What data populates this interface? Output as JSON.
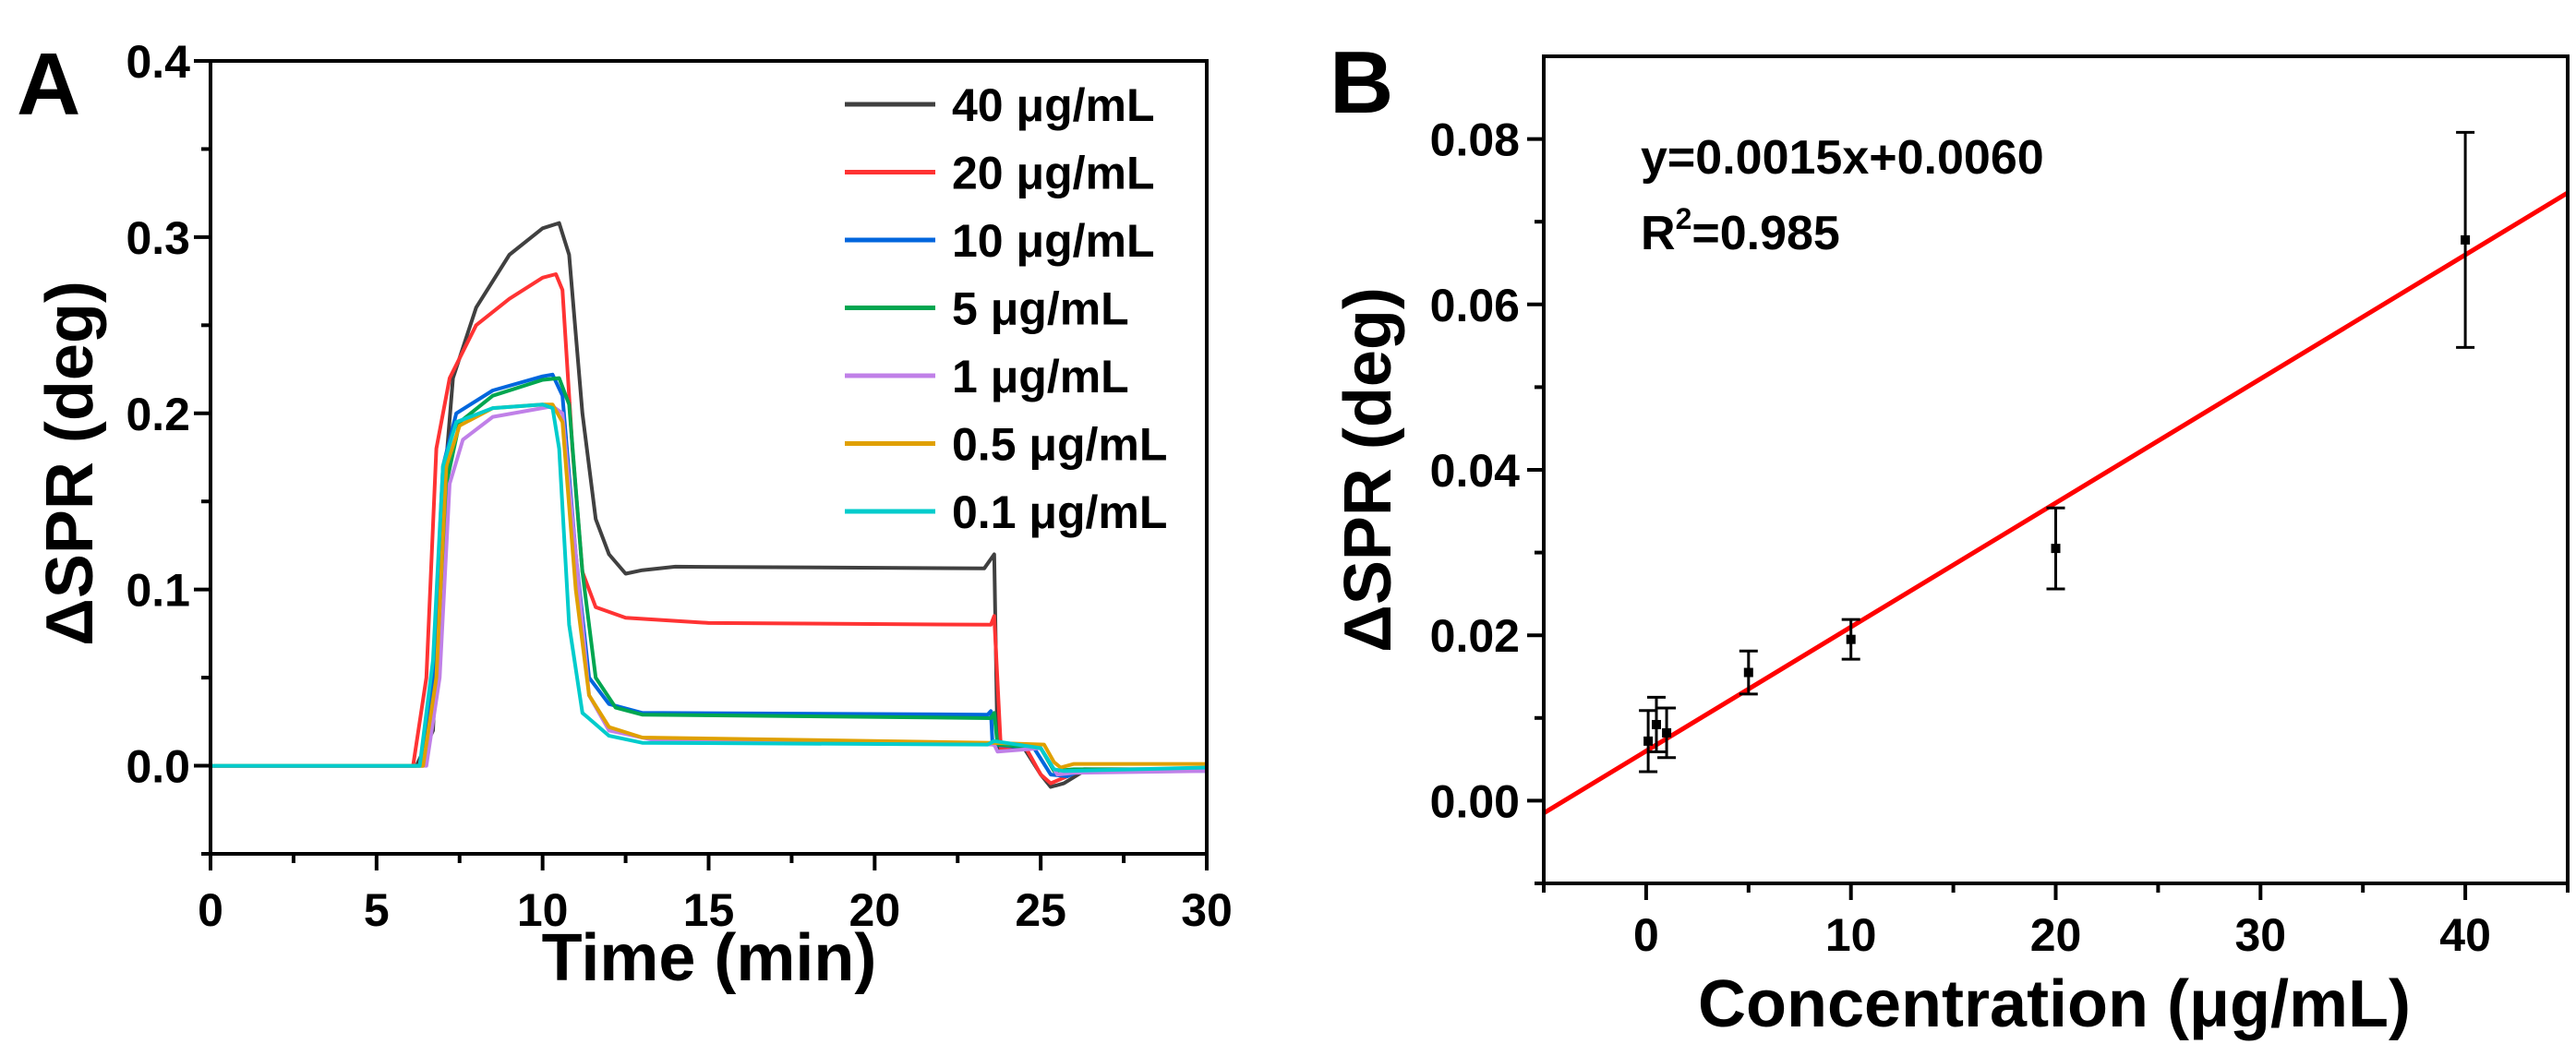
{
  "chart_data": [
    {
      "panel_label": "A",
      "type": "line",
      "xlabel": "Time (min)",
      "ylabel": "ΔSPR (deg)",
      "xlim": [
        0,
        30
      ],
      "ylim": [
        -0.05,
        0.4
      ],
      "xticks": [
        "0",
        "5",
        "10",
        "15",
        "20",
        "25",
        "30"
      ],
      "yticks": [
        "0.0",
        "0.1",
        "0.2",
        "0.3",
        "0.4"
      ],
      "legend_position": "top-right",
      "series": [
        {
          "name": "40 μg/mL",
          "color": "#404040",
          "points": [
            [
              0,
              0
            ],
            [
              6.2,
              0
            ],
            [
              6.7,
              0.02
            ],
            [
              7.0,
              0.15
            ],
            [
              7.3,
              0.22
            ],
            [
              8,
              0.26
            ],
            [
              9,
              0.29
            ],
            [
              10,
              0.305
            ],
            [
              10.5,
              0.308
            ],
            [
              10.8,
              0.29
            ],
            [
              11.2,
              0.2
            ],
            [
              11.6,
              0.14
            ],
            [
              12,
              0.12
            ],
            [
              12.5,
              0.109
            ],
            [
              13,
              0.111
            ],
            [
              14,
              0.113
            ],
            [
              23.3,
              0.112
            ],
            [
              23.6,
              0.12
            ],
            [
              23.7,
              0.01
            ],
            [
              24.5,
              0.01
            ],
            [
              25,
              -0.005
            ],
            [
              25.3,
              -0.012
            ],
            [
              25.7,
              -0.01
            ],
            [
              26.3,
              -0.003
            ],
            [
              30,
              -0.002
            ]
          ]
        },
        {
          "name": "20 μg/mL",
          "color": "#ff3333",
          "points": [
            [
              0,
              0
            ],
            [
              6.1,
              0
            ],
            [
              6.5,
              0.05
            ],
            [
              6.8,
              0.18
            ],
            [
              7.2,
              0.22
            ],
            [
              8,
              0.25
            ],
            [
              9,
              0.265
            ],
            [
              10,
              0.277
            ],
            [
              10.4,
              0.279
            ],
            [
              10.6,
              0.27
            ],
            [
              10.9,
              0.18
            ],
            [
              11.2,
              0.11
            ],
            [
              11.6,
              0.09
            ],
            [
              12.5,
              0.084
            ],
            [
              15,
              0.081
            ],
            [
              23.5,
              0.08
            ],
            [
              23.6,
              0.085
            ],
            [
              23.8,
              0.01
            ],
            [
              24.5,
              0.012
            ],
            [
              25,
              -0.005
            ],
            [
              25.3,
              -0.01
            ],
            [
              25.8,
              -0.006
            ],
            [
              26.3,
              -0.002
            ],
            [
              30,
              -0.002
            ]
          ]
        },
        {
          "name": "10 μg/mL",
          "color": "#0066dd",
          "points": [
            [
              0,
              0
            ],
            [
              6.3,
              0
            ],
            [
              6.7,
              0.05
            ],
            [
              7.0,
              0.17
            ],
            [
              7.4,
              0.2
            ],
            [
              8.5,
              0.213
            ],
            [
              10,
              0.221
            ],
            [
              10.3,
              0.222
            ],
            [
              10.6,
              0.21
            ],
            [
              11,
              0.12
            ],
            [
              11.4,
              0.05
            ],
            [
              12,
              0.035
            ],
            [
              13,
              0.03
            ],
            [
              23.4,
              0.029
            ],
            [
              23.5,
              0.031
            ],
            [
              23.55,
              0.012
            ],
            [
              24.8,
              0.01
            ],
            [
              25.3,
              -0.005
            ],
            [
              25.8,
              -0.006
            ],
            [
              26.3,
              -0.002
            ],
            [
              30,
              -0.003
            ]
          ]
        },
        {
          "name": "5 μg/mL",
          "color": "#00a650",
          "points": [
            [
              0,
              0
            ],
            [
              6.4,
              0
            ],
            [
              6.8,
              0.05
            ],
            [
              7.1,
              0.16
            ],
            [
              7.5,
              0.195
            ],
            [
              8.5,
              0.21
            ],
            [
              10,
              0.219
            ],
            [
              10.5,
              0.22
            ],
            [
              10.8,
              0.205
            ],
            [
              11.2,
              0.11
            ],
            [
              11.6,
              0.05
            ],
            [
              12.2,
              0.033
            ],
            [
              13,
              0.029
            ],
            [
              23.5,
              0.027
            ],
            [
              23.6,
              0.03
            ],
            [
              23.7,
              0.012
            ],
            [
              25,
              0.01
            ],
            [
              25.4,
              -0.003
            ],
            [
              26,
              -0.002
            ],
            [
              30,
              -0.002
            ]
          ]
        },
        {
          "name": "1 μg/mL",
          "color": "#c080e8",
          "points": [
            [
              0,
              0
            ],
            [
              6.5,
              0
            ],
            [
              6.9,
              0.05
            ],
            [
              7.2,
              0.16
            ],
            [
              7.6,
              0.185
            ],
            [
              8.5,
              0.198
            ],
            [
              10.3,
              0.204
            ],
            [
              10.6,
              0.2
            ],
            [
              11,
              0.12
            ],
            [
              11.4,
              0.04
            ],
            [
              12,
              0.02
            ],
            [
              13.5,
              0.014
            ],
            [
              23.6,
              0.012
            ],
            [
              23.7,
              0.008
            ],
            [
              25,
              0.01
            ],
            [
              25.5,
              -0.005
            ],
            [
              26,
              -0.004
            ],
            [
              30,
              -0.003
            ]
          ]
        },
        {
          "name": "0.5 μg/mL",
          "color": "#e0a000",
          "points": [
            [
              0,
              0
            ],
            [
              6.4,
              0
            ],
            [
              6.8,
              0.05
            ],
            [
              7.1,
              0.17
            ],
            [
              7.5,
              0.193
            ],
            [
              8.5,
              0.203
            ],
            [
              10,
              0.205
            ],
            [
              10.3,
              0.205
            ],
            [
              10.6,
              0.195
            ],
            [
              11,
              0.1
            ],
            [
              11.4,
              0.04
            ],
            [
              12,
              0.022
            ],
            [
              13,
              0.016
            ],
            [
              23.5,
              0.013
            ],
            [
              25.1,
              0.012
            ],
            [
              25.4,
              0.002
            ],
            [
              25.6,
              -0.001
            ],
            [
              26,
              0.001
            ],
            [
              30,
              0.001
            ]
          ]
        },
        {
          "name": "0.1 μg/mL",
          "color": "#00cccc",
          "points": [
            [
              0,
              0
            ],
            [
              6.3,
              0
            ],
            [
              6.7,
              0.06
            ],
            [
              7.0,
              0.17
            ],
            [
              7.4,
              0.195
            ],
            [
              8.5,
              0.203
            ],
            [
              10,
              0.205
            ],
            [
              10.3,
              0.203
            ],
            [
              10.5,
              0.18
            ],
            [
              10.8,
              0.08
            ],
            [
              11.2,
              0.03
            ],
            [
              12,
              0.017
            ],
            [
              13,
              0.013
            ],
            [
              23.4,
              0.012
            ],
            [
              23.6,
              0.014
            ],
            [
              25,
              0.01
            ],
            [
              25.4,
              -0.002
            ],
            [
              25.7,
              -0.003
            ],
            [
              30,
              -0.001
            ]
          ]
        }
      ]
    },
    {
      "panel_label": "B",
      "type": "scatter",
      "xlabel": "Concentration (μg/mL)",
      "ylabel": "ΔSPR (deg)",
      "xlim": [
        -5,
        45
      ],
      "ylim": [
        -0.01,
        0.09
      ],
      "xticks": [
        "0",
        "10",
        "20",
        "30",
        "40"
      ],
      "yticks": [
        "0.00",
        "0.02",
        "0.04",
        "0.06",
        "0.08"
      ],
      "points": [
        {
          "x": 0.1,
          "y": 0.0072,
          "err": 0.0037
        },
        {
          "x": 0.5,
          "y": 0.0092,
          "err": 0.0033
        },
        {
          "x": 1,
          "y": 0.0082,
          "err": 0.003
        },
        {
          "x": 5,
          "y": 0.0155,
          "err": 0.0026
        },
        {
          "x": 10,
          "y": 0.0195,
          "err": 0.0024
        },
        {
          "x": 20,
          "y": 0.0305,
          "err": 0.0049
        },
        {
          "x": 40,
          "y": 0.0678,
          "err": 0.013
        }
      ],
      "fit": {
        "slope": 0.0015,
        "intercept": 0.006,
        "color": "#ff0000"
      },
      "equation": "y=0.0015x+0.0060",
      "r2_prefix": "R",
      "r2_sup": "2",
      "r2_value": "=0.985"
    }
  ]
}
